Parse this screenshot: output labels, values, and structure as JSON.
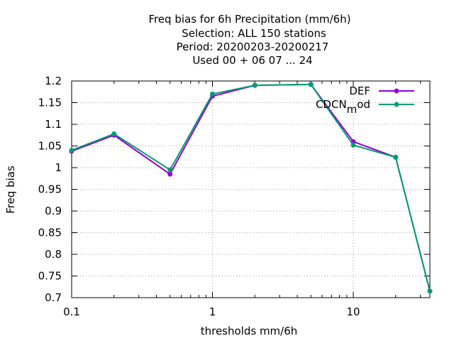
{
  "chart_data": {
    "type": "line",
    "title_lines": [
      "Freq bias  for 6h Precipitation (mm/6h)",
      "Selection: ALL    150 stations",
      "Period: 20200203-20200217",
      "Used  00 + 06 07 ... 24"
    ],
    "xlabel": "thresholds mm/6h",
    "ylabel": "Freq bias",
    "x_scale": "log",
    "xlim": [
      0.1,
      35
    ],
    "ylim": [
      0.7,
      1.2
    ],
    "x_ticks": [
      0.1,
      1,
      10
    ],
    "x_tick_labels": [
      "0.1",
      "1",
      "10"
    ],
    "y_ticks": [
      0.7,
      0.75,
      0.8,
      0.85,
      0.9,
      0.95,
      1,
      1.05,
      1.1,
      1.15,
      1.2
    ],
    "y_tick_labels": [
      "0.7",
      "0.75",
      "0.8",
      "0.85",
      "0.9",
      "0.95",
      "1",
      "1.05",
      "1.1",
      "1.15",
      "1.2"
    ],
    "grid": true,
    "legend_position": "top-right",
    "x": [
      0.1,
      0.2,
      0.5,
      1,
      2,
      5,
      10,
      20,
      35
    ],
    "series": [
      {
        "name": "DEF",
        "color": "#9400d3",
        "values": [
          1.038,
          1.075,
          0.985,
          1.165,
          1.19,
          1.192,
          1.06,
          1.024,
          0.715
        ]
      },
      {
        "name": "CDCN_mod",
        "color": "#009e73",
        "values": [
          1.04,
          1.078,
          0.995,
          1.17,
          1.19,
          1.192,
          1.052,
          1.024,
          0.715
        ]
      }
    ]
  }
}
